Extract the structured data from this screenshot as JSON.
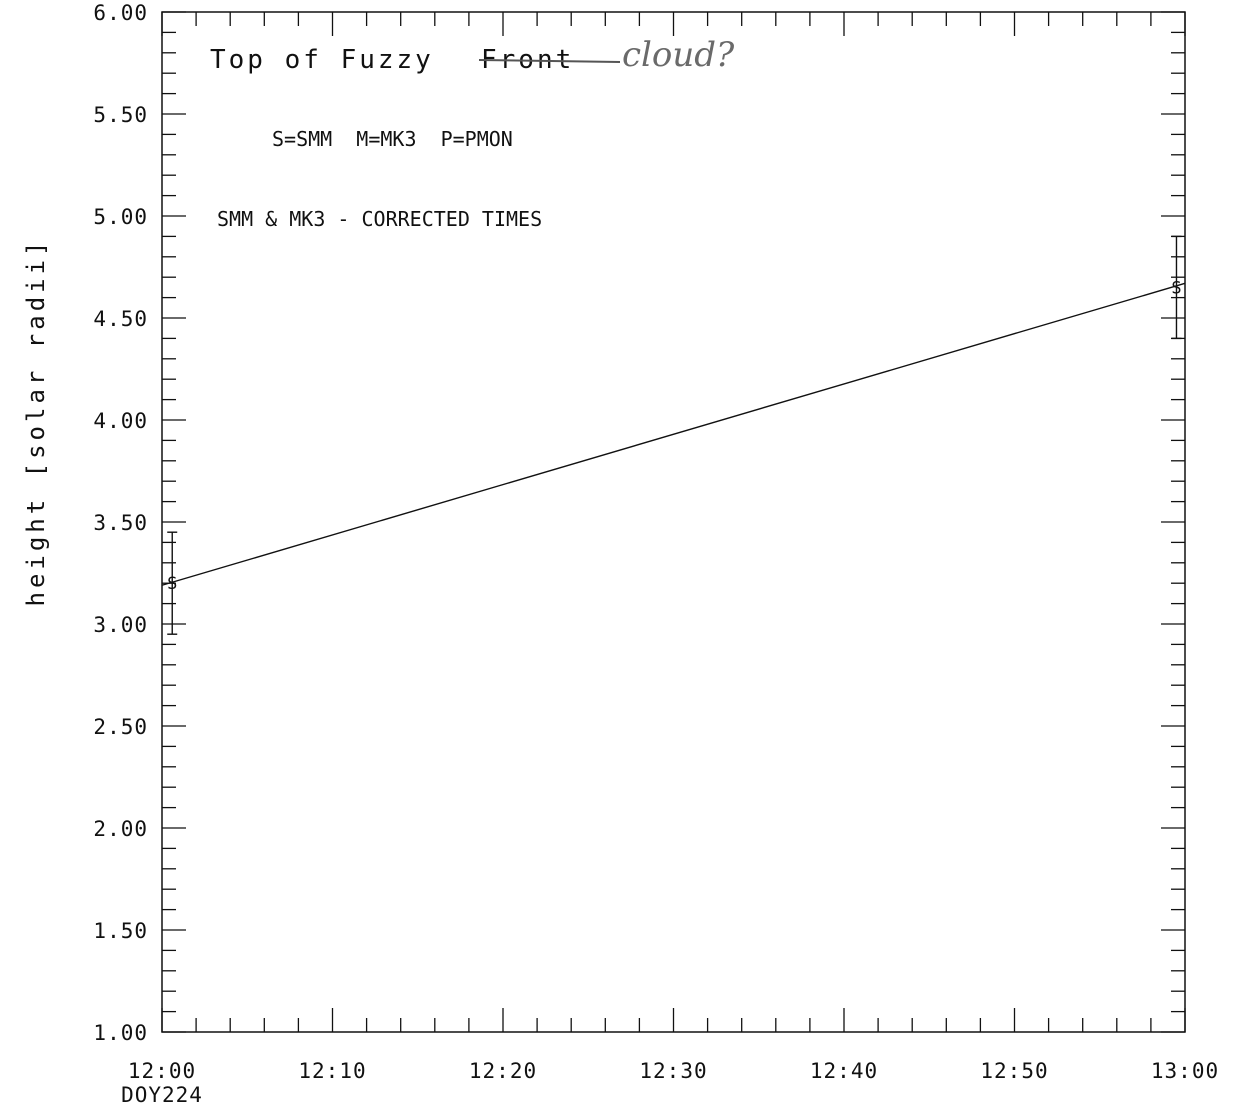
{
  "chart_data": {
    "type": "line",
    "ylabel": "height [solar radii]",
    "xlabel": "",
    "x_sublabel": "DOY224",
    "ylim": [
      1.0,
      6.0
    ],
    "xlim": [
      "12:00",
      "13:00"
    ],
    "y_ticks": [
      "1.00",
      "1.50",
      "2.00",
      "2.50",
      "3.00",
      "3.50",
      "4.00",
      "4.50",
      "5.00",
      "5.50",
      "6.00"
    ],
    "y_tick_values": [
      1.0,
      1.5,
      2.0,
      2.5,
      3.0,
      3.5,
      4.0,
      4.5,
      5.0,
      5.5,
      6.0
    ],
    "x_ticks": [
      "12:00",
      "12:10",
      "12:20",
      "12:30",
      "12:40",
      "12:50",
      "13:00"
    ],
    "x_tick_minutes": [
      0,
      10,
      20,
      30,
      40,
      50,
      60
    ],
    "annotations": {
      "title": "Top of Fuzzy",
      "title_struck": "Front",
      "handwritten": "cloud?",
      "legend_key": "S=SMM  M=MK3  P=PMON",
      "note": "SMM & MK3 - CORRECTED TIMES"
    },
    "series": [
      {
        "marker": "S",
        "points": [
          {
            "t": "12:00.6",
            "minutes": 0.6,
            "y": 3.2,
            "err_low": 2.95,
            "err_high": 3.45
          },
          {
            "t": "12:59.5",
            "minutes": 59.5,
            "y": 4.65,
            "err_low": 4.4,
            "err_high": 4.9
          }
        ]
      }
    ],
    "fit_line": {
      "from": {
        "minutes": 0,
        "y": 3.19
      },
      "to": {
        "minutes": 60,
        "y": 4.67
      }
    },
    "grid": false
  }
}
